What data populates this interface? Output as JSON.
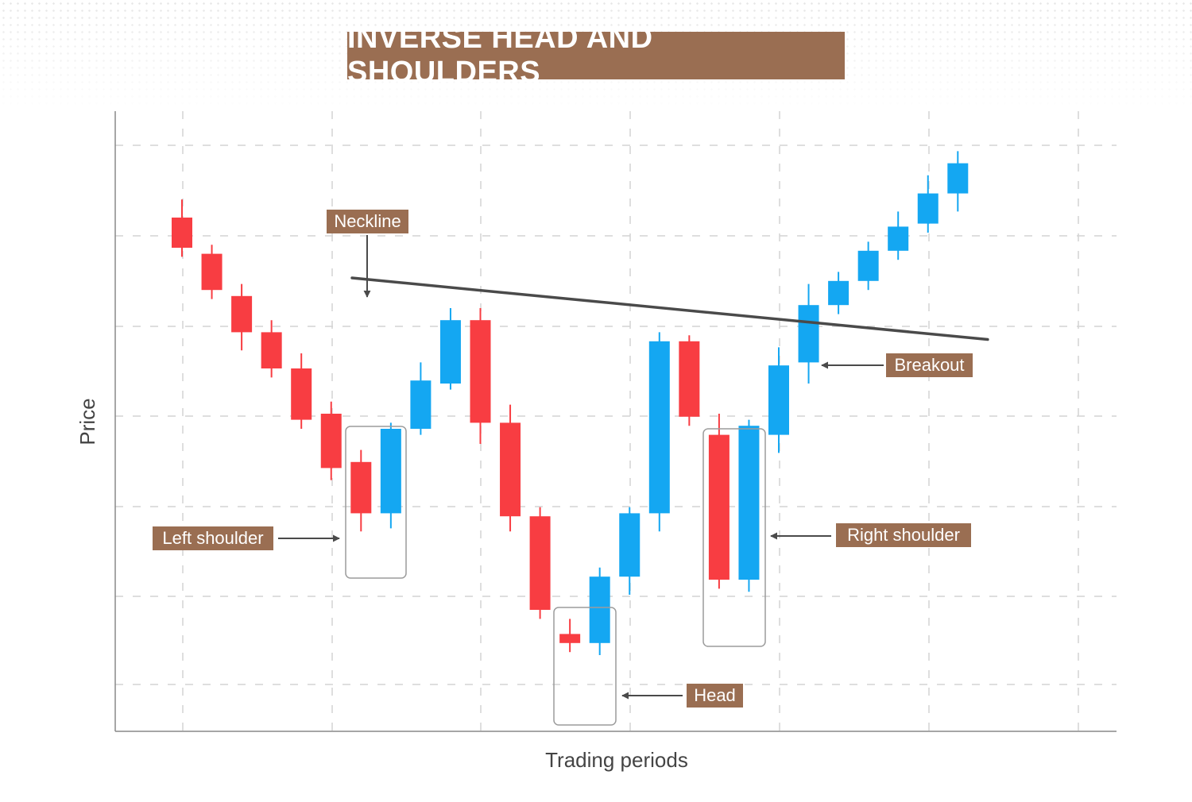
{
  "title": "INVERSE HEAD AND SHOULDERS",
  "colors": {
    "bearish": "#f83d42",
    "bullish": "#14a7f2",
    "label_bg": "#9a6e52",
    "neckline": "#4a4a4a"
  },
  "chart_data": {
    "type": "candlestick",
    "title": "INVERSE HEAD AND SHOULDERS",
    "xlabel": "Trading periods",
    "ylabel": "Price",
    "ylim": [
      0,
      100
    ],
    "candles": [
      {
        "o": 85,
        "c": 80,
        "h": 88,
        "l": 78.5
      },
      {
        "o": 79,
        "c": 73,
        "h": 80.5,
        "l": 71.5
      },
      {
        "o": 72,
        "c": 66,
        "h": 74,
        "l": 63
      },
      {
        "o": 66,
        "c": 60,
        "h": 68,
        "l": 58.5
      },
      {
        "o": 60,
        "c": 51.5,
        "h": 62.5,
        "l": 50
      },
      {
        "o": 52.5,
        "c": 43.5,
        "h": 54.5,
        "l": 41.5
      },
      {
        "o": 44.5,
        "c": 36,
        "h": 46.5,
        "l": 33
      },
      {
        "o": 36,
        "c": 50,
        "h": 51,
        "l": 33.5
      },
      {
        "o": 50,
        "c": 58,
        "h": 61,
        "l": 49
      },
      {
        "o": 57.5,
        "c": 68,
        "h": 70,
        "l": 56.5
      },
      {
        "o": 68,
        "c": 51,
        "h": 70,
        "l": 47.5
      },
      {
        "o": 51,
        "c": 35.5,
        "h": 54,
        "l": 33
      },
      {
        "o": 35.5,
        "c": 20,
        "h": 37,
        "l": 18.5
      },
      {
        "o": 16,
        "c": 14.5,
        "h": 18.5,
        "l": 13
      },
      {
        "o": 14.5,
        "c": 25.5,
        "h": 27,
        "l": 12.5
      },
      {
        "o": 25.5,
        "c": 36,
        "h": 37,
        "l": 22.5
      },
      {
        "o": 36,
        "c": 64.5,
        "h": 66,
        "l": 33
      },
      {
        "o": 64.5,
        "c": 52,
        "h": 65.5,
        "l": 50.5
      },
      {
        "o": 49,
        "c": 25,
        "h": 52.5,
        "l": 23.5
      },
      {
        "o": 25,
        "c": 50.5,
        "h": 51.5,
        "l": 23
      },
      {
        "o": 49,
        "c": 60.5,
        "h": 63.5,
        "l": 46
      },
      {
        "o": 61,
        "c": 70.5,
        "h": 74,
        "l": 57.5
      },
      {
        "o": 70.5,
        "c": 74.5,
        "h": 76,
        "l": 69
      },
      {
        "o": 74.5,
        "c": 79.5,
        "h": 81,
        "l": 73
      },
      {
        "o": 79.5,
        "c": 83.5,
        "h": 86,
        "l": 78
      },
      {
        "o": 84,
        "c": 89,
        "h": 92,
        "l": 82.5
      },
      {
        "o": 89,
        "c": 94,
        "h": 96,
        "l": 86
      }
    ],
    "neckline": {
      "from": [
        5.7,
        75
      ],
      "to": [
        27,
        64.8
      ]
    },
    "annotations": {
      "neckline": "Neckline",
      "breakout": "Breakout",
      "left_shoulder": "Left shoulder",
      "right_shoulder": "Right shoulder",
      "head": "Head"
    }
  }
}
